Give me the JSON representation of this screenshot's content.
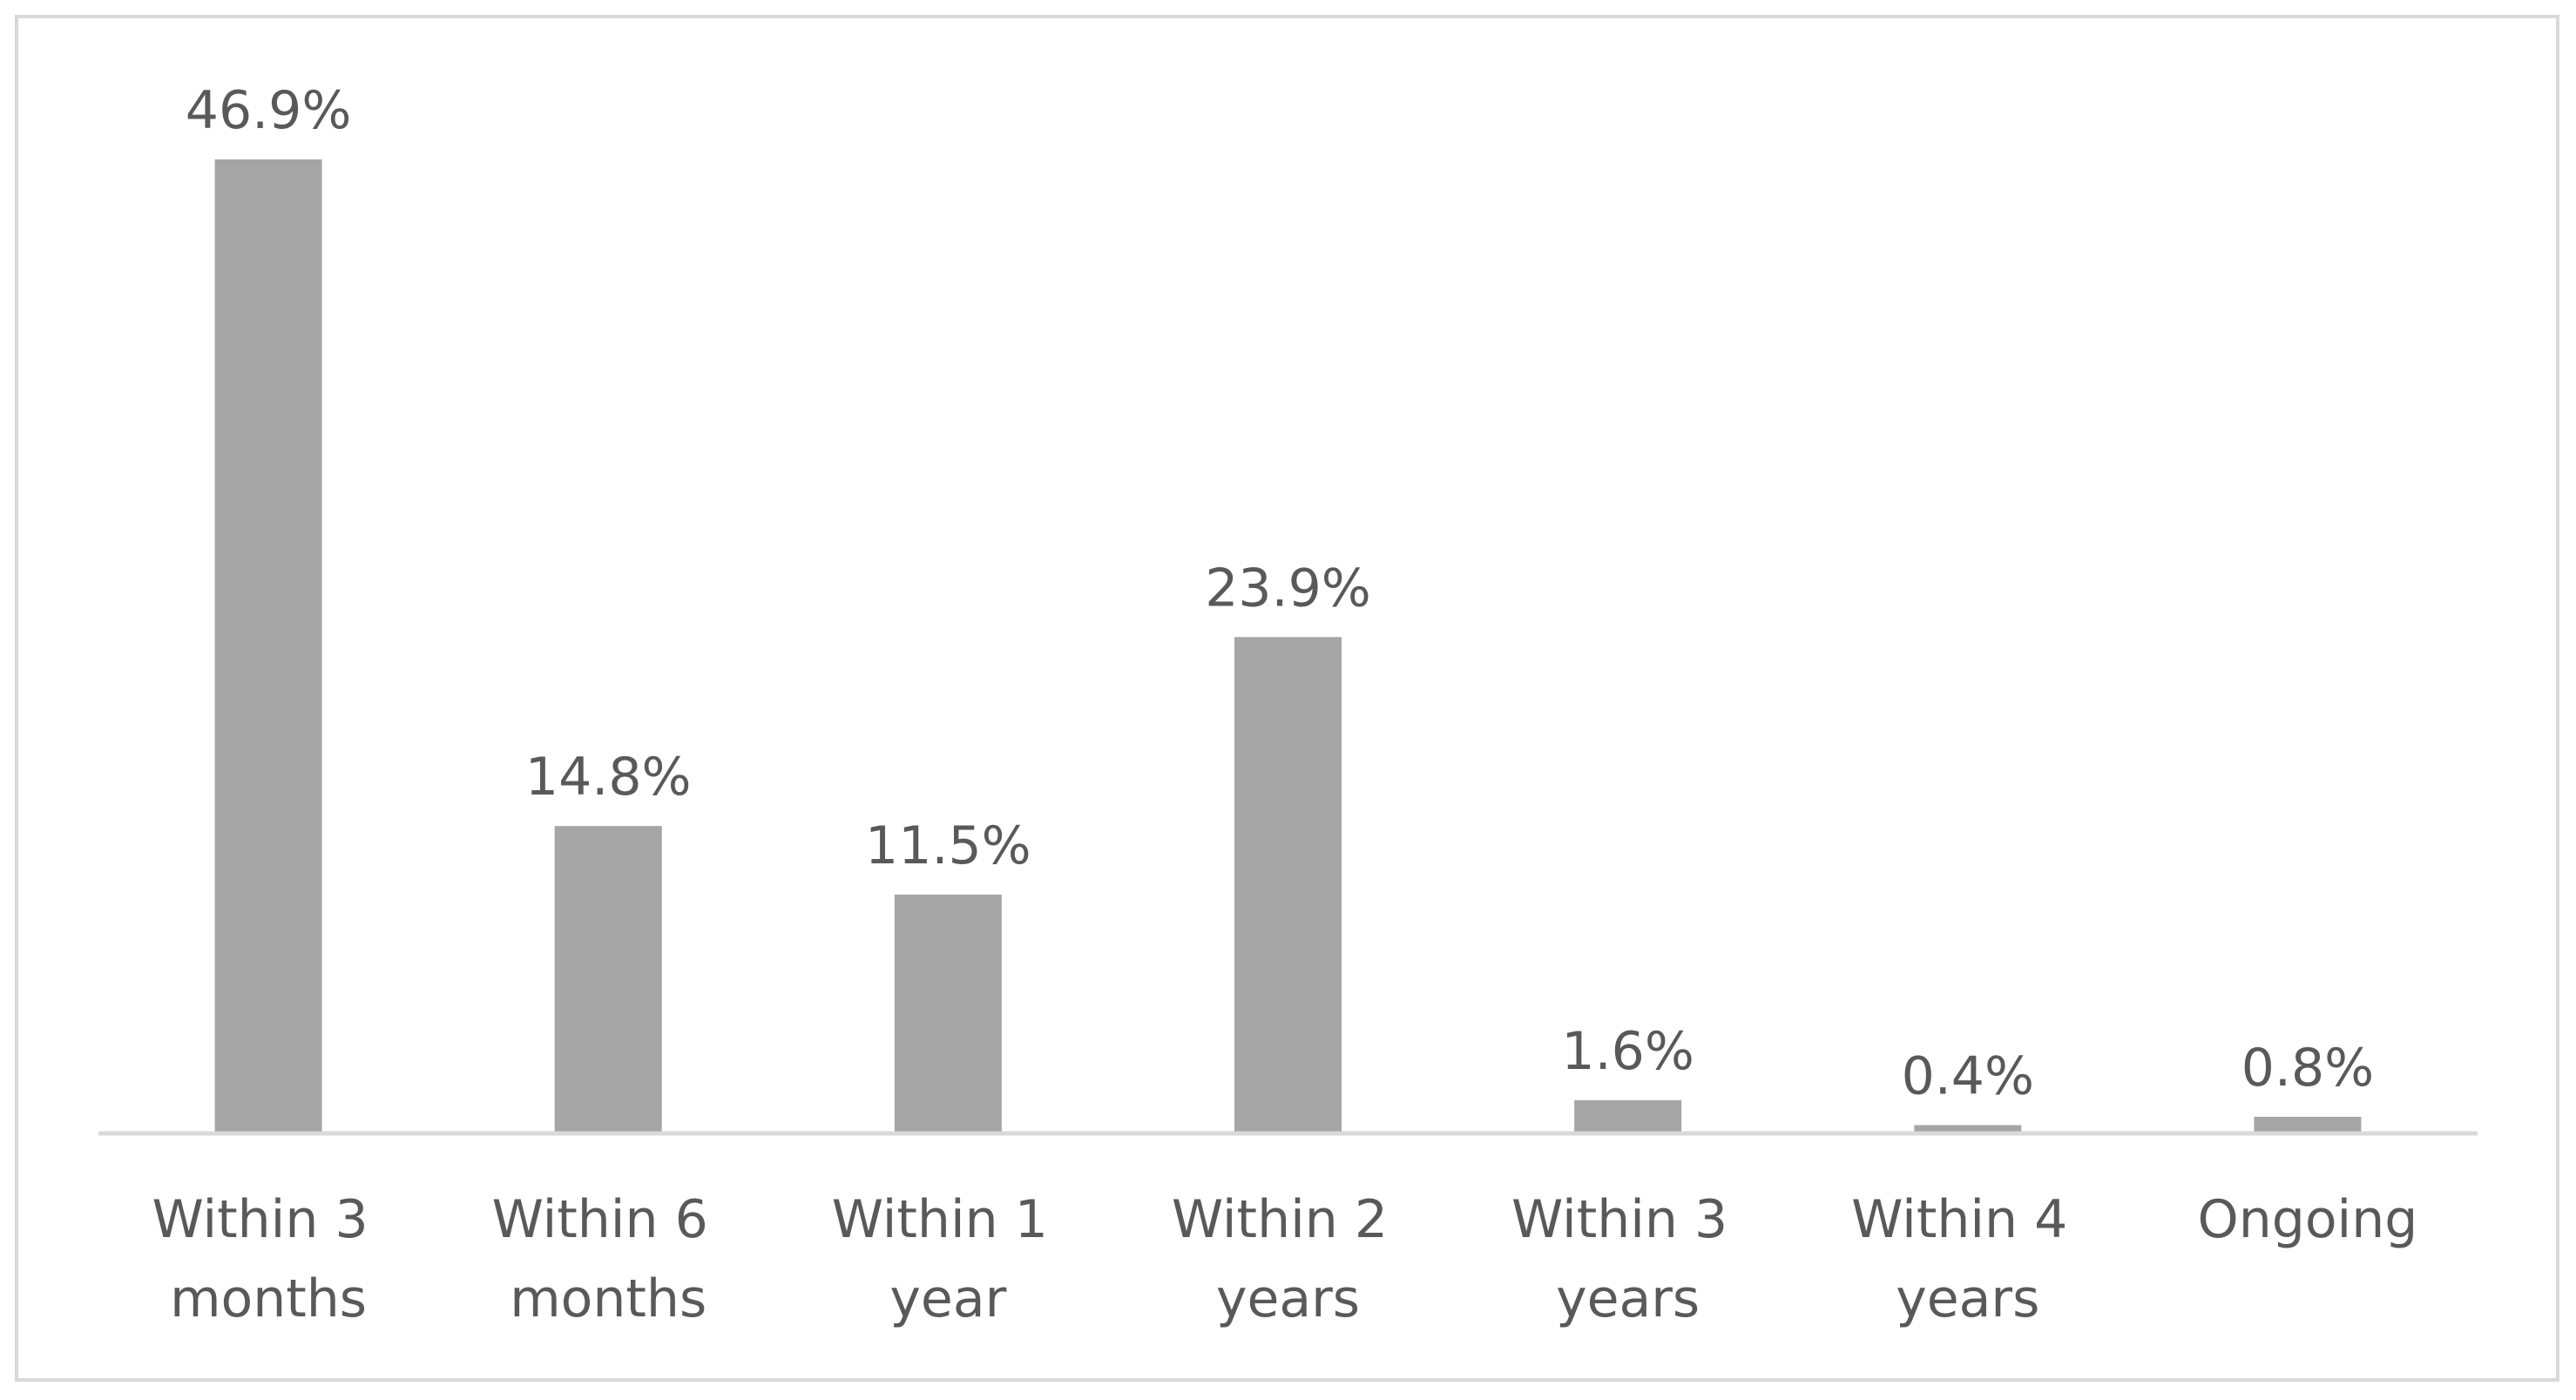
{
  "chart_data": {
    "type": "bar",
    "categories": [
      "Within 3 months",
      "Within 6 months",
      "Within 1 year",
      "Within 2 years",
      "Within 3 years",
      "Within 4 years",
      "Ongoing"
    ],
    "values": [
      46.9,
      14.8,
      11.5,
      23.9,
      1.6,
      0.4,
      0.8
    ],
    "value_labels": [
      "46.9%",
      "14.8%",
      "11.5%",
      "23.9%",
      "1.6%",
      "0.4%",
      "0.8%"
    ],
    "color": "#a5a5a5"
  }
}
